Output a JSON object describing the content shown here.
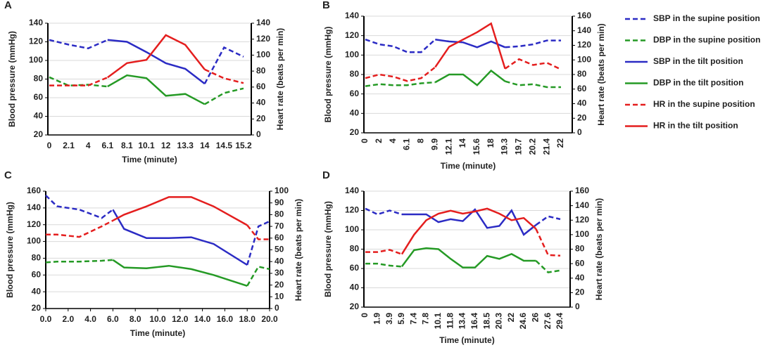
{
  "chart_data": [
    {
      "type": "line",
      "panel": "A",
      "xlabel": "Time (minute)",
      "ylabel": "Blood pressure (mmHg)",
      "y2label": "Heart rate (beats per min)",
      "categories": [
        "0",
        "2.1",
        "4",
        "6.1",
        "8.1",
        "10.1",
        "12",
        "13.3",
        "14",
        "14.5",
        "15.2"
      ],
      "ylim": [
        20,
        140
      ],
      "yticks": [
        20,
        40,
        60,
        80,
        100,
        120,
        140
      ],
      "y2lim": [
        0,
        140
      ],
      "y2ticks": [
        0,
        20,
        40,
        60,
        80,
        100,
        120,
        140
      ],
      "grid": true,
      "series": [
        {
          "name": "SBP in the supine position",
          "color": "#2b2bc4",
          "dash": true,
          "values": [
            122,
            117,
            113,
            122,
            null,
            null,
            null,
            null,
            75,
            114,
            104
          ]
        },
        {
          "name": "DBP in the supine position",
          "color": "#259a25",
          "dash": true,
          "values": [
            82,
            73,
            74,
            72,
            null,
            null,
            null,
            null,
            53,
            65,
            70
          ]
        },
        {
          "name": "SBP in the tilt position",
          "color": "#2b2bc4",
          "dash": false,
          "values": [
            null,
            null,
            null,
            122,
            120,
            109,
            97,
            91,
            75,
            null,
            null
          ]
        },
        {
          "name": "DBP in the tilt position",
          "color": "#259a25",
          "dash": false,
          "values": [
            null,
            null,
            null,
            72,
            84,
            81,
            62,
            64,
            53,
            null,
            null
          ]
        },
        {
          "name": "HR in the supine position",
          "color": "#e41e1e",
          "dash": true,
          "axis": "y2",
          "values": [
            62,
            62,
            62,
            72,
            null,
            null,
            null,
            null,
            82,
            71,
            65
          ]
        },
        {
          "name": "HR in the tilt position",
          "color": "#e41e1e",
          "dash": false,
          "axis": "y2",
          "values": [
            null,
            null,
            null,
            72,
            90,
            94,
            125,
            113,
            82,
            null,
            null
          ]
        }
      ]
    },
    {
      "type": "line",
      "panel": "B",
      "xlabel": "Time (minute)",
      "ylabel": "Blood pressure (mmHg)",
      "y2label": "Heart rate (beats per min)",
      "categories": [
        "0",
        "2",
        "4",
        "6.1",
        "8",
        "9.9",
        "12.1",
        "14",
        "15.6",
        "18",
        "19.3",
        "19.7",
        "20.2",
        "21.4",
        "22"
      ],
      "ylim": [
        20,
        140
      ],
      "yticks": [
        20,
        40,
        60,
        80,
        100,
        120,
        140
      ],
      "y2lim": [
        0,
        160
      ],
      "y2ticks": [
        0,
        20,
        40,
        60,
        80,
        100,
        120,
        140,
        160
      ],
      "grid": true,
      "series": [
        {
          "color": "#2b2bc4",
          "dash": true,
          "values": [
            116,
            111,
            109,
            103,
            103,
            116,
            null,
            null,
            null,
            null,
            108,
            109,
            111,
            115,
            115
          ]
        },
        {
          "color": "#259a25",
          "dash": true,
          "values": [
            68,
            70,
            69,
            69,
            71,
            72,
            null,
            null,
            null,
            null,
            73,
            69,
            70,
            67,
            67
          ]
        },
        {
          "color": "#2b2bc4",
          "dash": false,
          "values": [
            null,
            null,
            null,
            null,
            null,
            116,
            114,
            113,
            108,
            114,
            108,
            null,
            null,
            null,
            null
          ]
        },
        {
          "color": "#259a25",
          "dash": false,
          "values": [
            null,
            null,
            null,
            null,
            null,
            72,
            80,
            80,
            69,
            84,
            73,
            null,
            null,
            null,
            null
          ]
        },
        {
          "color": "#e41e1e",
          "dash": true,
          "axis": "y2",
          "values": [
            75,
            80,
            77,
            71,
            75,
            90,
            null,
            null,
            null,
            null,
            88,
            101,
            93,
            96,
            87
          ]
        },
        {
          "color": "#e41e1e",
          "dash": false,
          "axis": "y2",
          "values": [
            null,
            null,
            null,
            null,
            null,
            90,
            118,
            128,
            138,
            150,
            88,
            null,
            null,
            null,
            null
          ]
        }
      ]
    },
    {
      "type": "line",
      "panel": "C",
      "xlabel": "Time (minute)",
      "ylabel": "Blood pressure (mmHg)",
      "y2label": "Heart rate (beats per min)",
      "x": [
        0,
        1,
        3,
        5,
        6,
        7,
        9,
        11,
        13,
        15,
        18,
        19,
        20
      ],
      "xlim": [
        0,
        20
      ],
      "xticks": [
        {
          "value": 0,
          "label": "0.0"
        },
        {
          "value": 2,
          "label": "2.0"
        },
        {
          "value": 4,
          "label": "4.0"
        },
        {
          "value": 6,
          "label": "6.0"
        },
        {
          "value": 8,
          "label": "8.0"
        },
        {
          "value": 10,
          "label": "10.0"
        },
        {
          "value": 12,
          "label": "12.0"
        },
        {
          "value": 14,
          "label": "14.0"
        },
        {
          "value": 16,
          "label": "16.0"
        },
        {
          "value": 18,
          "label": "18.0"
        },
        {
          "value": 20,
          "label": "20.0"
        }
      ],
      "ylim": [
        20,
        160
      ],
      "yticks": [
        20,
        40,
        60,
        80,
        100,
        120,
        140,
        160
      ],
      "y2lim": [
        0,
        100
      ],
      "y2ticks": [
        0,
        10,
        20,
        30,
        40,
        50,
        60,
        70,
        80,
        90,
        100
      ],
      "grid": true,
      "series": [
        {
          "color": "#2b2bc4",
          "dash": true,
          "values": [
            155,
            142,
            138,
            128,
            138,
            null,
            null,
            null,
            null,
            null,
            72,
            118,
            124
          ]
        },
        {
          "color": "#259a25",
          "dash": true,
          "values": [
            75,
            76,
            76,
            77,
            78,
            null,
            null,
            null,
            null,
            null,
            47,
            70,
            67
          ]
        },
        {
          "color": "#2b2bc4",
          "dash": false,
          "values": [
            null,
            null,
            null,
            null,
            138,
            115,
            104,
            104,
            105,
            97,
            72,
            null,
            null
          ]
        },
        {
          "color": "#259a25",
          "dash": false,
          "values": [
            null,
            null,
            null,
            null,
            78,
            69,
            68,
            71,
            67,
            60,
            47,
            null,
            null
          ]
        },
        {
          "color": "#e41e1e",
          "dash": true,
          "axis": "y2",
          "values": [
            63,
            63,
            61,
            70,
            75,
            null,
            null,
            null,
            null,
            null,
            71,
            59,
            59
          ]
        },
        {
          "color": "#e41e1e",
          "dash": false,
          "axis": "y2",
          "values": [
            null,
            null,
            null,
            null,
            75,
            80,
            87,
            95,
            95,
            87,
            71,
            null,
            null
          ]
        }
      ]
    },
    {
      "type": "line",
      "panel": "D",
      "xlabel": "Time (minute)",
      "ylabel": "Blood pressure (mmHg)",
      "y2label": "Heart rate (beats per min)",
      "categories": [
        "0",
        "1.9",
        "3.9",
        "5.9",
        "7.4",
        "7.8",
        "10.1",
        "11.8",
        "13.4",
        "16.4",
        "18.5",
        "20.3",
        "22",
        "24.6",
        "26",
        "27.6",
        "29.4"
      ],
      "ylim": [
        20,
        140
      ],
      "yticks": [
        20,
        40,
        60,
        80,
        100,
        120,
        140
      ],
      "y2lim": [
        0,
        160
      ],
      "y2ticks": [
        0,
        20,
        40,
        60,
        80,
        100,
        120,
        140,
        160
      ],
      "grid": true,
      "series": [
        {
          "color": "#2b2bc4",
          "dash": true,
          "values": [
            122,
            116,
            120,
            116,
            null,
            null,
            null,
            null,
            null,
            null,
            null,
            null,
            null,
            null,
            105,
            114,
            111
          ]
        },
        {
          "color": "#259a25",
          "dash": true,
          "values": [
            65,
            65,
            63,
            62,
            null,
            null,
            null,
            null,
            null,
            null,
            null,
            null,
            null,
            null,
            68,
            56,
            58
          ]
        },
        {
          "color": "#2b2bc4",
          "dash": false,
          "values": [
            null,
            null,
            null,
            116,
            116,
            116,
            108,
            111,
            109,
            121,
            102,
            104,
            120,
            95,
            105,
            null,
            null
          ]
        },
        {
          "color": "#259a25",
          "dash": false,
          "values": [
            null,
            null,
            null,
            62,
            79,
            81,
            80,
            70,
            61,
            61,
            73,
            70,
            75,
            68,
            68,
            null,
            null
          ]
        },
        {
          "color": "#e41e1e",
          "dash": true,
          "axis": "y2",
          "values": [
            76,
            76,
            79,
            73,
            null,
            null,
            null,
            null,
            null,
            null,
            null,
            null,
            null,
            null,
            108,
            72,
            71
          ]
        },
        {
          "color": "#e41e1e",
          "dash": false,
          "axis": "y2",
          "values": [
            null,
            null,
            null,
            73,
            100,
            120,
            129,
            133,
            129,
            132,
            136,
            129,
            120,
            123,
            108,
            null,
            null
          ]
        }
      ]
    }
  ]
}
